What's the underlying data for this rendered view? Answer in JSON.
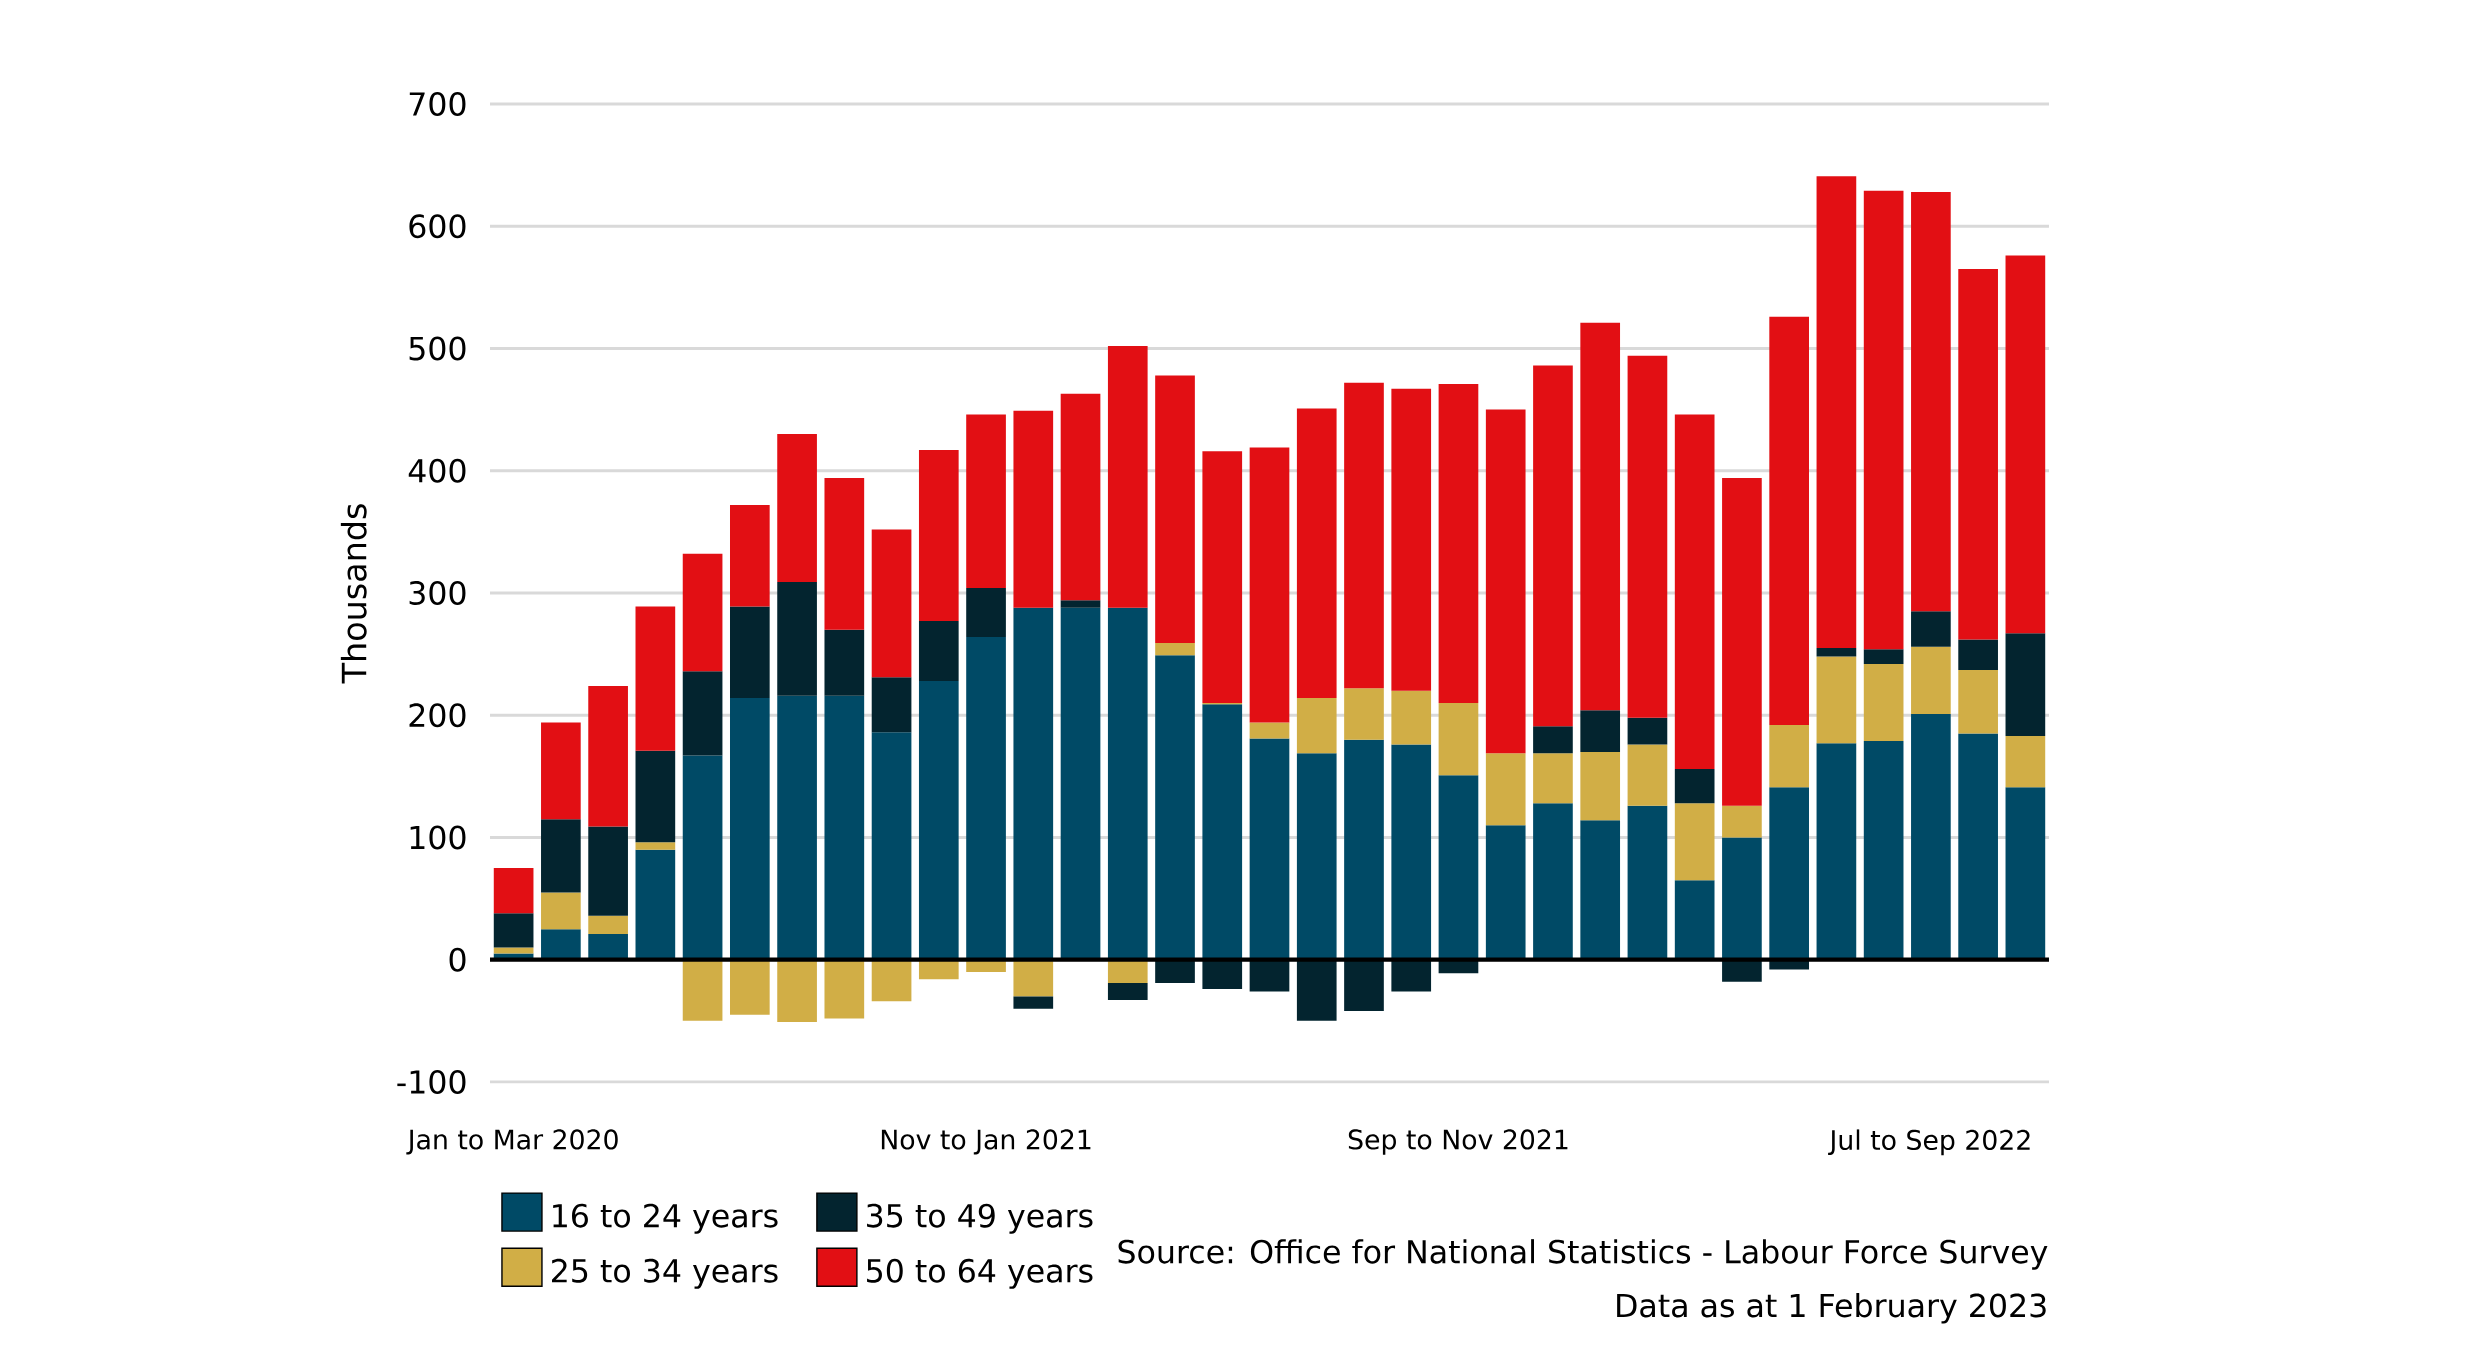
{
  "chart_data": {
    "type": "bar",
    "stacked": true,
    "ylabel": "Thousands",
    "categories": [
      "Jan to Mar 2020",
      null,
      null,
      null,
      null,
      null,
      null,
      null,
      null,
      null,
      "Nov to Jan 2021",
      null,
      null,
      null,
      null,
      null,
      null,
      null,
      null,
      null,
      "Sep to Nov 2021",
      null,
      null,
      null,
      null,
      null,
      null,
      null,
      null,
      null,
      "Jul to Sep 2022",
      null,
      null
    ],
    "series": [
      {
        "name": "16 to 24 years",
        "color": "#004a66",
        "values": [
          5,
          25,
          21,
          90,
          167,
          214,
          216,
          216,
          186,
          228,
          264,
          288,
          288,
          288,
          249,
          209,
          181,
          169,
          180,
          176,
          151,
          110,
          128,
          114,
          126,
          65,
          100,
          141,
          177,
          179,
          201,
          185,
          141
        ]
      },
      {
        "name": "25 to 34 years",
        "color": "#d1ae46",
        "values": [
          5,
          30,
          15,
          6,
          -50,
          -45,
          -51,
          -48,
          -34,
          -16,
          -10,
          -30,
          0,
          -19,
          10,
          1,
          13,
          45,
          42,
          44,
          59,
          59,
          41,
          56,
          50,
          63,
          26,
          51,
          71,
          63,
          55,
          52,
          42
        ]
      },
      {
        "name": "35 to 49 years",
        "color": "#03242f",
        "values": [
          28,
          60,
          73,
          75,
          69,
          75,
          93,
          54,
          45,
          49,
          40,
          -10,
          6,
          -14,
          -19,
          -24,
          -26,
          -50,
          -42,
          -26,
          -11,
          0,
          22,
          34,
          22,
          28,
          -18,
          -8,
          7,
          12,
          29,
          25,
          84
        ]
      },
      {
        "name": "50 to 64 years",
        "color": "#e20f14",
        "values": [
          37,
          79,
          115,
          118,
          96,
          83,
          121,
          124,
          121,
          140,
          142,
          161,
          169,
          214,
          219,
          206,
          225,
          237,
          250,
          247,
          261,
          281,
          295,
          317,
          296,
          290,
          268,
          334,
          386,
          375,
          343,
          303,
          309
        ]
      }
    ],
    "ylim": [
      -100,
      700
    ],
    "yticks": [
      -100,
      0,
      100,
      200,
      300,
      400,
      500,
      600,
      700
    ],
    "grid": "y",
    "legend": "bottom left",
    "annotations": [
      "Source: Office for National Statistics - Labour Force Survey",
      "Data as at 1 February 2023"
    ]
  }
}
